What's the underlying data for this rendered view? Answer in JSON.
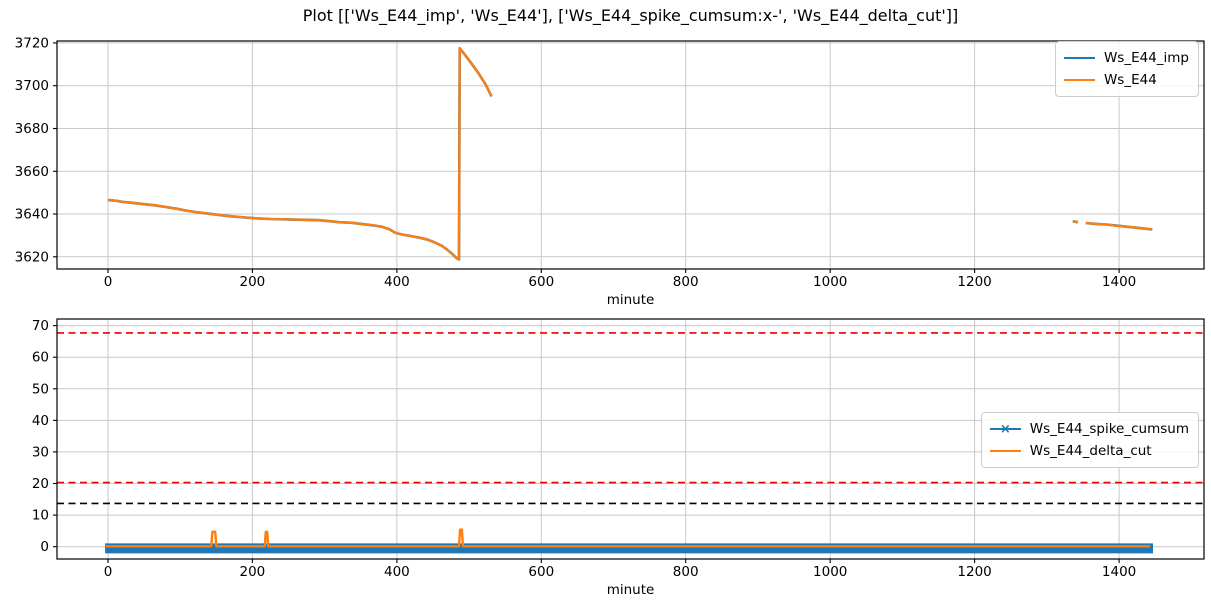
{
  "title": "Plot [['Ws_E44_imp', 'Ws_E44'], ['Ws_E44_spike_cumsum:x-', 'Ws_E44_delta_cut']]",
  "colors": {
    "blue": "#1f77b4",
    "orange": "#ff7f0e",
    "red": "#e60000",
    "black": "#000000",
    "grid": "#c9c9c9",
    "spine": "#000000",
    "tick_text": "#000000",
    "legend_border": "#cccccc"
  },
  "chart_data": [
    {
      "type": "line",
      "position": "top",
      "xlabel": "minute",
      "xlim": [
        -70.6,
        1517.6
      ],
      "ylim": [
        3614.3,
        3720.9
      ],
      "xticks": [
        0,
        200,
        400,
        600,
        800,
        1000,
        1200,
        1400
      ],
      "yticks": [
        3620,
        3640,
        3660,
        3680,
        3700,
        3720
      ],
      "grid": true,
      "legend": {
        "position": "upper right",
        "entries": [
          {
            "label": "Ws_E44_imp",
            "color": "#1f77b4",
            "marker": ""
          },
          {
            "label": "Ws_E44",
            "color": "#ff7f0e",
            "marker": ""
          }
        ]
      },
      "series": [
        {
          "name": "Ws_E44_imp",
          "color": "#1f77b4",
          "width": 2.6,
          "segments": [
            [
              [
                0,
                3646.5
              ],
              [
                12,
                3646.2
              ],
              [
                22,
                3645.6
              ],
              [
                35,
                3645.2
              ],
              [
                50,
                3644.6
              ],
              [
                65,
                3644.1
              ],
              [
                80,
                3643.3
              ],
              [
                95,
                3642.5
              ],
              [
                108,
                3641.6
              ],
              [
                122,
                3640.9
              ],
              [
                138,
                3640.2
              ],
              [
                155,
                3639.5
              ],
              [
                172,
                3638.9
              ],
              [
                190,
                3638.4
              ],
              [
                205,
                3638.0
              ],
              [
                225,
                3637.7
              ],
              [
                250,
                3637.5
              ],
              [
                272,
                3637.3
              ],
              [
                292,
                3637.1
              ],
              [
                305,
                3636.7
              ],
              [
                320,
                3636.2
              ],
              [
                338,
                3635.9
              ],
              [
                352,
                3635.3
              ],
              [
                368,
                3634.7
              ],
              [
                380,
                3634.0
              ],
              [
                390,
                3632.8
              ],
              [
                398,
                3631.2
              ],
              [
                408,
                3630.4
              ],
              [
                420,
                3629.7
              ],
              [
                432,
                3628.9
              ],
              [
                443,
                3628.0
              ],
              [
                452,
                3626.8
              ],
              [
                462,
                3625.2
              ],
              [
                470,
                3623.3
              ],
              [
                477,
                3621.2
              ],
              [
                483,
                3619.3
              ],
              [
                486,
                3618.8
              ],
              [
                487,
                3717.5
              ],
              [
                494,
                3714.5
              ],
              [
                503,
                3710.5
              ],
              [
                513,
                3705.8
              ],
              [
                523,
                3700.5
              ],
              [
                531,
                3695.0
              ]
            ],
            [
              [
                1336,
                3636.6
              ],
              [
                1343,
                3636.2
              ]
            ],
            [
              [
                1354,
                3635.8
              ],
              [
                1368,
                3635.4
              ],
              [
                1382,
                3635.1
              ],
              [
                1396,
                3634.6
              ],
              [
                1410,
                3634.1
              ],
              [
                1424,
                3633.6
              ],
              [
                1438,
                3633.1
              ],
              [
                1446,
                3632.8
              ]
            ]
          ]
        },
        {
          "name": "Ws_E44",
          "color": "#ff7f0e",
          "width": 2.3,
          "segments": [
            [
              [
                0,
                3646.5
              ],
              [
                12,
                3646.2
              ],
              [
                22,
                3645.6
              ],
              [
                35,
                3645.2
              ],
              [
                50,
                3644.6
              ],
              [
                65,
                3644.1
              ],
              [
                80,
                3643.3
              ],
              [
                95,
                3642.5
              ],
              [
                108,
                3641.6
              ],
              [
                122,
                3640.9
              ],
              [
                138,
                3640.2
              ],
              [
                155,
                3639.5
              ],
              [
                172,
                3638.9
              ],
              [
                190,
                3638.4
              ],
              [
                205,
                3638.0
              ],
              [
                225,
                3637.7
              ],
              [
                250,
                3637.5
              ],
              [
                272,
                3637.3
              ],
              [
                292,
                3637.1
              ],
              [
                305,
                3636.7
              ],
              [
                320,
                3636.2
              ],
              [
                338,
                3635.9
              ],
              [
                352,
                3635.3
              ],
              [
                368,
                3634.7
              ],
              [
                380,
                3634.0
              ],
              [
                390,
                3632.8
              ],
              [
                398,
                3631.2
              ],
              [
                408,
                3630.4
              ],
              [
                420,
                3629.7
              ],
              [
                432,
                3628.9
              ],
              [
                443,
                3628.0
              ],
              [
                452,
                3626.8
              ],
              [
                462,
                3625.2
              ],
              [
                470,
                3623.3
              ],
              [
                477,
                3621.2
              ],
              [
                483,
                3619.3
              ],
              [
                486,
                3618.8
              ],
              [
                487,
                3717.5
              ],
              [
                494,
                3714.5
              ],
              [
                503,
                3710.5
              ],
              [
                513,
                3705.8
              ],
              [
                523,
                3700.5
              ],
              [
                531,
                3695.0
              ]
            ],
            [
              [
                1336,
                3636.6
              ],
              [
                1343,
                3636.2
              ]
            ],
            [
              [
                1354,
                3635.8
              ],
              [
                1368,
                3635.4
              ],
              [
                1382,
                3635.1
              ],
              [
                1396,
                3634.6
              ],
              [
                1410,
                3634.1
              ],
              [
                1424,
                3633.6
              ],
              [
                1438,
                3633.1
              ],
              [
                1446,
                3632.8
              ]
            ]
          ]
        }
      ]
    },
    {
      "type": "line",
      "position": "bottom",
      "xlabel": "minute",
      "xlim": [
        -70.6,
        1517.6
      ],
      "ylim": [
        -3.9,
        72.1
      ],
      "xticks": [
        0,
        200,
        400,
        600,
        800,
        1000,
        1200,
        1400
      ],
      "yticks": [
        0,
        10,
        20,
        30,
        40,
        50,
        60,
        70
      ],
      "grid": true,
      "hlines": [
        {
          "y": 67.7,
          "color": "#e60000",
          "style": "dashed",
          "width": 1.6
        },
        {
          "y": 20.3,
          "color": "#e60000",
          "style": "dashed",
          "width": 1.6
        },
        {
          "y": 13.7,
          "color": "#000000",
          "style": "dashed",
          "width": 1.6
        }
      ],
      "legend": {
        "position": "center right",
        "entries": [
          {
            "label": "Ws_E44_spike_cumsum",
            "color": "#1f77b4",
            "marker": "x"
          },
          {
            "label": "Ws_E44_delta_cut",
            "color": "#ff7f0e",
            "marker": ""
          }
        ]
      },
      "series": [
        {
          "name": "Ws_E44_spike_cumsum",
          "color": "#1f77b4",
          "width": 10,
          "marker": "x",
          "segments": [
            [
              [
                -4,
                -0.55
              ],
              [
                1447,
                -0.55
              ]
            ]
          ]
        },
        {
          "name": "Ws_E44_delta_cut",
          "color": "#ff7f0e",
          "width": 2.4,
          "segments": [
            [
              [
                -3,
                0.12
              ],
              [
                143,
                0.12
              ],
              [
                144.5,
                4.7
              ],
              [
                148.5,
                4.7
              ],
              [
                150,
                0.12
              ],
              [
                217,
                0.12
              ],
              [
                218.5,
                4.7
              ],
              [
                220.5,
                4.7
              ],
              [
                222,
                0.12
              ],
              [
                486,
                0.12
              ],
              [
                487.5,
                5.4
              ],
              [
                490,
                5.4
              ],
              [
                491.5,
                0.12
              ],
              [
                1443,
                0.12
              ]
            ]
          ]
        }
      ]
    }
  ]
}
